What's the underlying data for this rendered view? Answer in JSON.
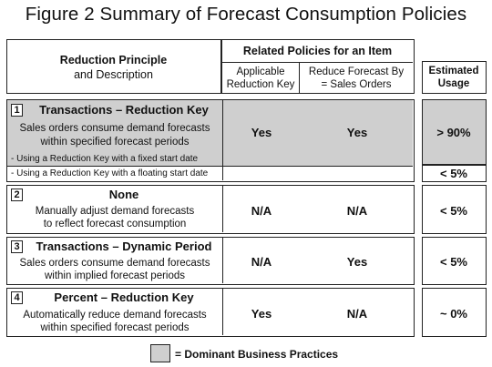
{
  "title": "Figure 2  Summary of Forecast Consumption Policies",
  "header": {
    "principle_line1": "Reduction Principle",
    "principle_line2": "and Description",
    "related": "Related Policies for an Item",
    "applicable_line1": "Applicable",
    "applicable_line2": "Reduction Key",
    "reduce_line1": "Reduce Forecast By",
    "reduce_line2": "= Sales Orders",
    "usage_line1": "Estimated",
    "usage_line2": "Usage"
  },
  "rows": [
    {
      "num": "1",
      "name": "Transactions – Reduction Key",
      "desc_line1": "Sales orders consume demand forecasts",
      "desc_line2": "within specified forecast periods",
      "applicable": "Yes",
      "reduce": "Yes",
      "usage": "> 90%",
      "sub1": "- Using a Reduction Key with a fixed start date",
      "sub2": "- Using a Reduction Key with a floating start date",
      "sub2_usage": "< 5%"
    },
    {
      "num": "2",
      "name": "None",
      "desc_line1": "Manually adjust demand forecasts",
      "desc_line2": "to reflect forecast consumption",
      "applicable": "N/A",
      "reduce": "N/A",
      "usage": "< 5%"
    },
    {
      "num": "3",
      "name": "Transactions – Dynamic Period",
      "desc_line1": "Sales orders consume demand forecasts",
      "desc_line2": "within implied forecast periods",
      "applicable": "N/A",
      "reduce": "Yes",
      "usage": "< 5%"
    },
    {
      "num": "4",
      "name": "Percent – Reduction Key",
      "desc_line1": "Automatically reduce demand forecasts",
      "desc_line2": "within specified forecast periods",
      "applicable": "Yes",
      "reduce": "N/A",
      "usage": "~ 0%"
    }
  ],
  "legend": {
    "label": "= Dominant Business Practices",
    "swatch_color": "#cfcfcf"
  }
}
